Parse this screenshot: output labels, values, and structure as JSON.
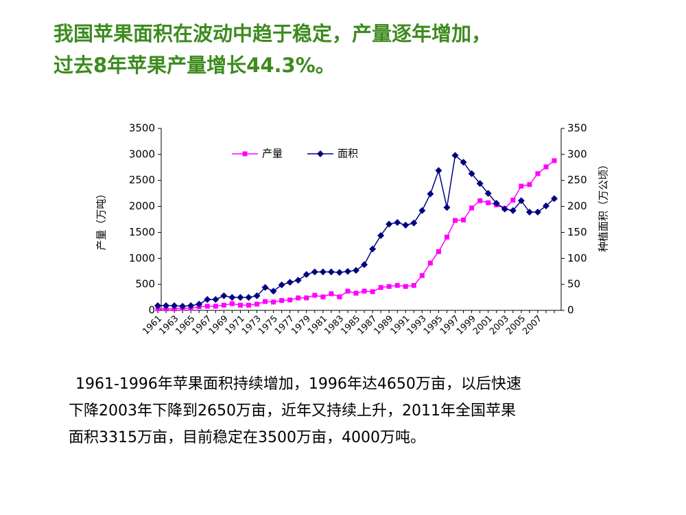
{
  "title": [
    "我国苹果面积在波动中趋于稳定，产量逐年增加，",
    "过去8年苹果产量增长44.3%。"
  ],
  "chart_data": {
    "type": "line",
    "categories": [
      "1961",
      null,
      "1963",
      null,
      "1965",
      null,
      "1967",
      null,
      "1969",
      null,
      "1971",
      null,
      "1973",
      null,
      "1975",
      null,
      "1977",
      null,
      "1979",
      null,
      "1981",
      null,
      "1983",
      null,
      "1985",
      null,
      "1987",
      null,
      "1989",
      null,
      "1991",
      null,
      "1993",
      null,
      "1995",
      null,
      "1997",
      null,
      "1999",
      null,
      "2001",
      null,
      "2003",
      null,
      "2005",
      null,
      "2007",
      null,
      null
    ],
    "series": [
      {
        "name": "产量",
        "color": "#ff00ff",
        "marker": "square",
        "values": [
          30,
          30,
          30,
          40,
          40,
          70,
          80,
          80,
          100,
          130,
          100,
          100,
          120,
          170,
          160,
          190,
          200,
          240,
          240,
          290,
          260,
          320,
          260,
          370,
          330,
          370,
          360,
          440,
          460,
          480,
          460,
          480,
          670,
          910,
          1130,
          1410,
          1730,
          1740,
          1970,
          2110,
          2070,
          2030,
          1960,
          2120,
          2390,
          2420,
          2630,
          2760,
          2880
        ]
      },
      {
        "name": "面积",
        "color": "#000080",
        "marker": "diamond",
        "axis": "y2",
        "values": [
          9,
          9,
          9,
          8,
          9,
          12,
          21,
          21,
          28,
          25,
          25,
          25,
          28,
          44,
          37,
          49,
          54,
          58,
          69,
          74,
          74,
          74,
          73,
          75,
          77,
          88,
          118,
          144,
          166,
          169,
          164,
          168,
          192,
          224,
          269,
          198,
          298,
          285,
          263,
          244,
          225,
          206,
          195,
          192,
          211,
          189,
          189,
          201,
          215
        ]
      }
    ],
    "ylabel": "产量（万吨）",
    "y2label": "种植面积（万公顷）",
    "ylim": [
      0,
      3500
    ],
    "yticks": [
      0,
      500,
      1000,
      1500,
      2000,
      2500,
      3000,
      3500
    ],
    "y2lim": [
      0,
      350
    ],
    "y2ticks": [
      0,
      50,
      100,
      150,
      200,
      250,
      300,
      350
    ],
    "legend": "top"
  },
  "body": [
    "1961-1996年苹果面积持续增加，1996年达4650万亩，以后快速",
    "下降2003年下降到2650万亩，近年又持续上升，2011年全国苹果",
    "面积3315万亩，目前稳定在3500万亩，4000万吨。"
  ]
}
